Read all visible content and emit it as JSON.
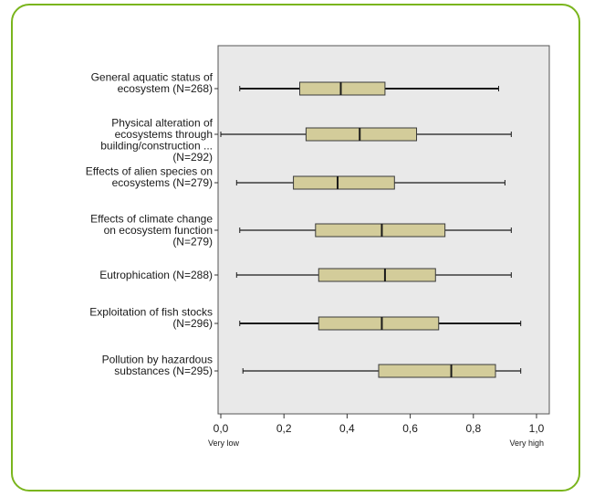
{
  "colors": {
    "frame_border": "#7ab51d",
    "plot_background": "#e9e9e9",
    "box_fill": "#d3cc9a",
    "box_stroke": "#3a3a3a",
    "whisker": "#1a1a1a"
  },
  "chart_data": {
    "type": "boxplot",
    "orientation": "horizontal",
    "title": "",
    "xlabel": "",
    "ylabel": "",
    "xlim": [
      0,
      1
    ],
    "x_ticks": [
      "0,0",
      "0,2",
      "0,4",
      "0,6",
      "0,8",
      "1,0"
    ],
    "x_tick_values": [
      0,
      0.2,
      0.4,
      0.6,
      0.8,
      1.0
    ],
    "x_end_labels": {
      "low": "Very low",
      "high": "Very high"
    },
    "grid": false,
    "categories": [
      {
        "label_lines": [
          "General aquatic status of",
          "ecosystem (N=268)"
        ],
        "min": 0.06,
        "q1": 0.25,
        "median": 0.38,
        "q3": 0.52,
        "max": 0.88
      },
      {
        "label_lines": [
          "Physical alteration of",
          "ecosystems through",
          "building/construction ...",
          "(N=292)"
        ],
        "min": 0.0,
        "q1": 0.27,
        "median": 0.44,
        "q3": 0.62,
        "max": 0.92
      },
      {
        "label_lines": [
          "Effects of alien species on",
          "ecosystems (N=279)"
        ],
        "min": 0.05,
        "q1": 0.23,
        "median": 0.37,
        "q3": 0.55,
        "max": 0.9
      },
      {
        "label_lines": [
          "Effects of climate change",
          "on ecosystem function",
          "(N=279)"
        ],
        "min": 0.06,
        "q1": 0.3,
        "median": 0.51,
        "q3": 0.71,
        "max": 0.92
      },
      {
        "label_lines": [
          "Eutrophication (N=288)"
        ],
        "min": 0.05,
        "q1": 0.31,
        "median": 0.52,
        "q3": 0.68,
        "max": 0.92
      },
      {
        "label_lines": [
          "Exploitation of fish stocks",
          "(N=296)"
        ],
        "min": 0.06,
        "q1": 0.31,
        "median": 0.51,
        "q3": 0.69,
        "max": 0.95
      },
      {
        "label_lines": [
          "Pollution by hazardous",
          "substances (N=295)"
        ],
        "min": 0.07,
        "q1": 0.5,
        "median": 0.73,
        "q3": 0.87,
        "max": 0.95
      }
    ]
  }
}
